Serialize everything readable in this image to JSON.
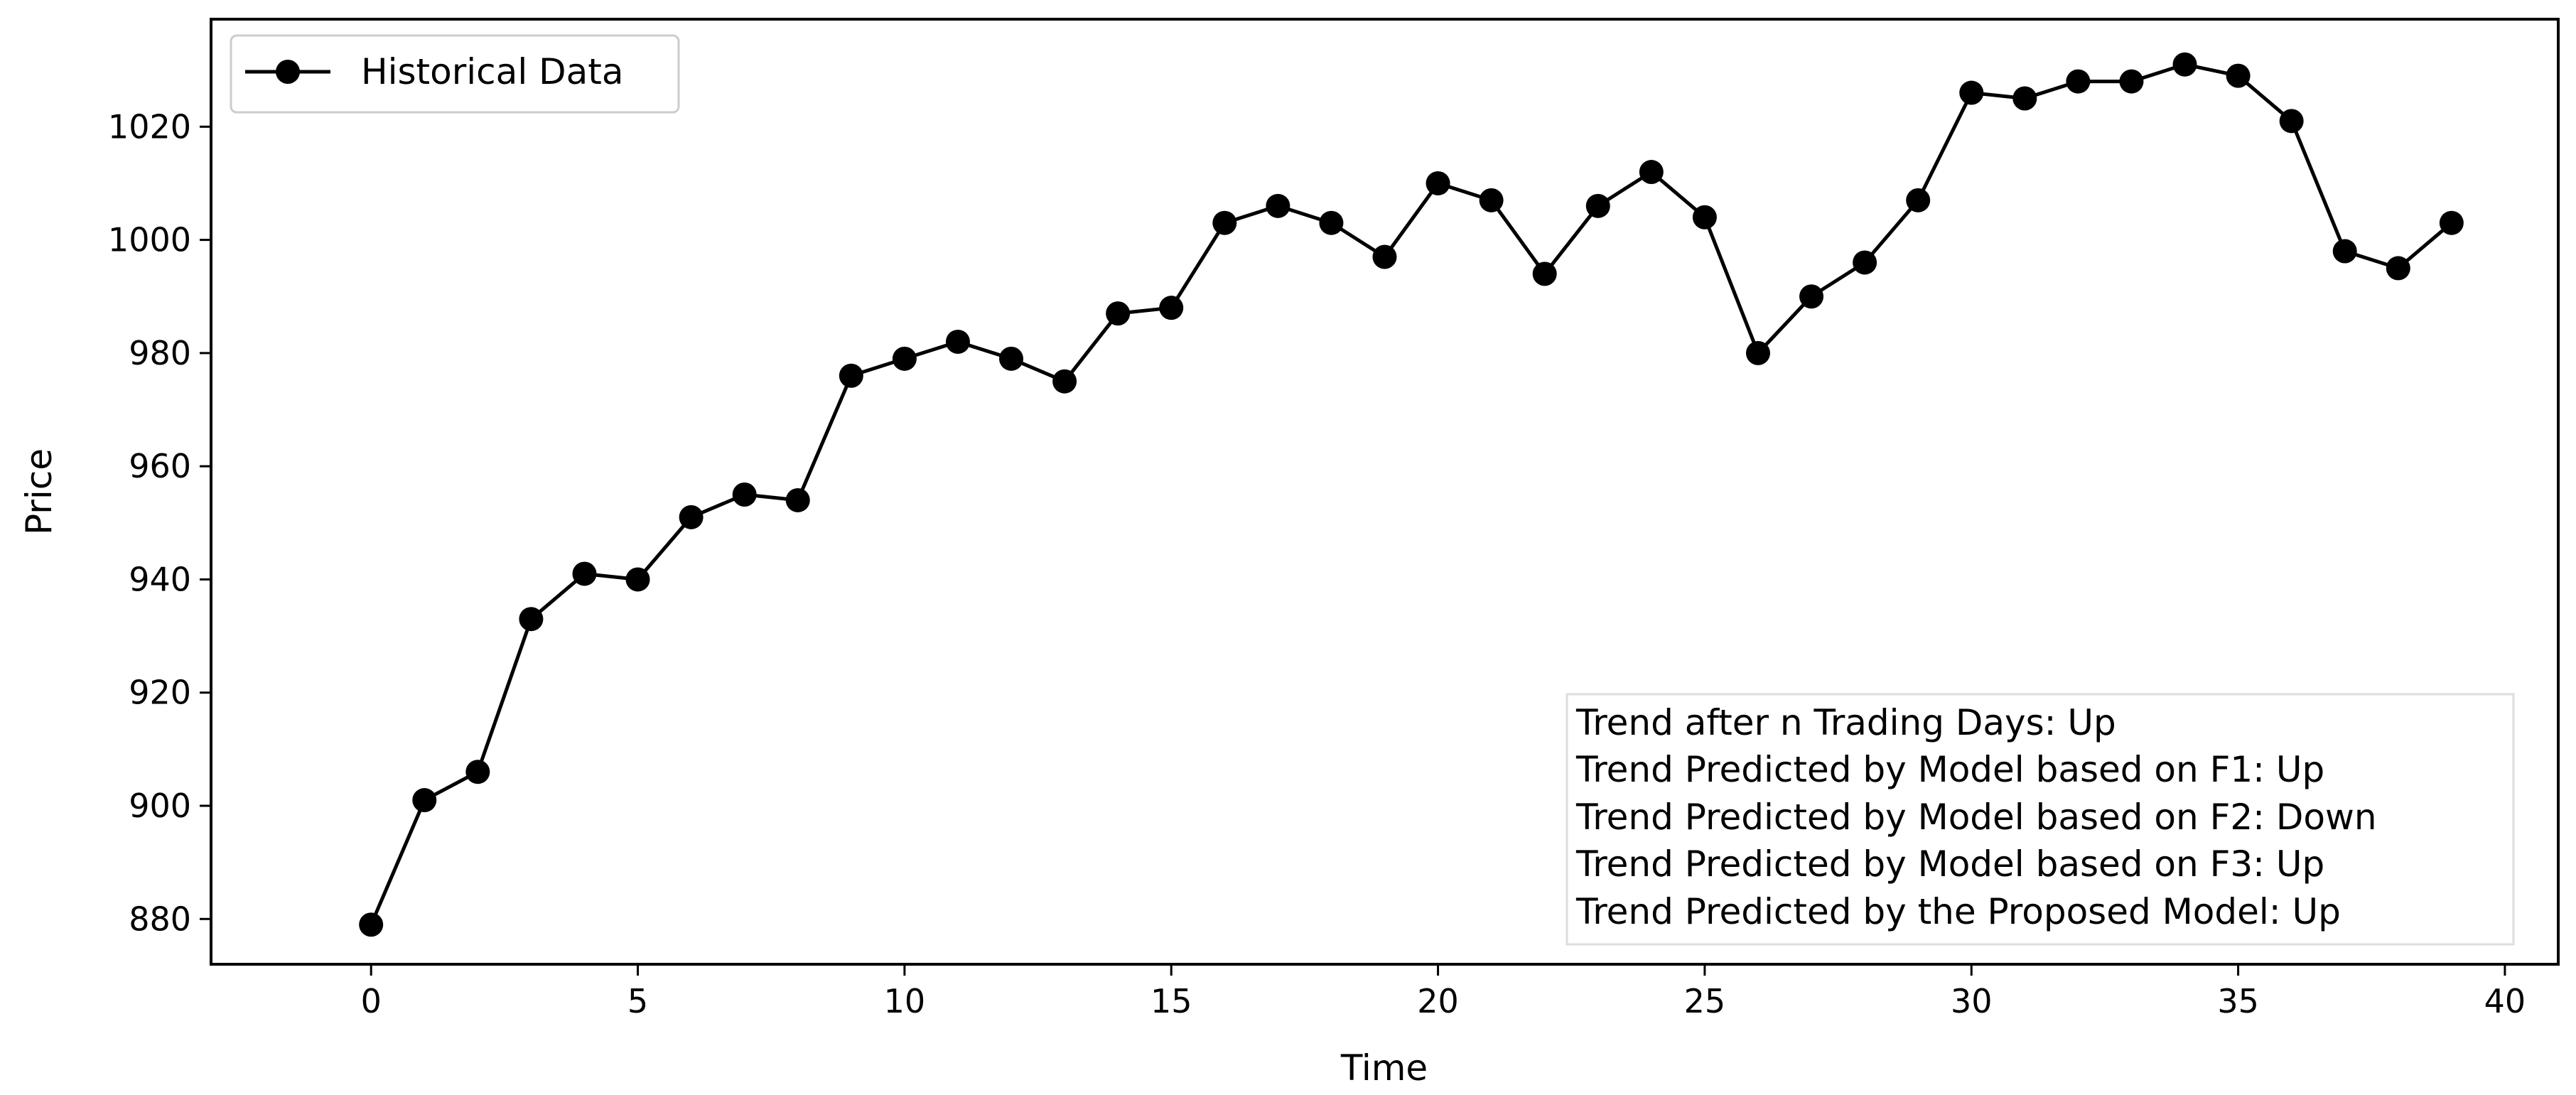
{
  "chart_data": {
    "type": "line",
    "xlabel": "Time",
    "ylabel": "Price",
    "xlim": [
      -3,
      41
    ],
    "ylim": [
      872,
      1039
    ],
    "xticks": [
      0,
      5,
      10,
      15,
      20,
      25,
      30,
      35,
      40
    ],
    "yticks": [
      880,
      900,
      920,
      940,
      960,
      980,
      1000,
      1020
    ],
    "grid": false,
    "legend": {
      "placement": "upper-left",
      "entries": [
        "Historical Data"
      ]
    },
    "series": [
      {
        "name": "Historical Data",
        "color": "#000000",
        "marker": "circle",
        "x": [
          0,
          1,
          2,
          3,
          4,
          5,
          6,
          7,
          8,
          9,
          10,
          11,
          12,
          13,
          14,
          15,
          16,
          17,
          18,
          19,
          20,
          21,
          22,
          23,
          24,
          25,
          26,
          27,
          28,
          29,
          30,
          31,
          32,
          33,
          34,
          35,
          36,
          37,
          38,
          39
        ],
        "values": [
          879,
          901,
          906,
          933,
          941,
          940,
          951,
          955,
          954,
          976,
          979,
          982,
          979,
          975,
          987,
          988,
          1003,
          1006,
          1003,
          997,
          1010,
          1007,
          994,
          1006,
          1012,
          1004,
          980,
          990,
          996,
          1007,
          1026,
          1025,
          1028,
          1028,
          1031,
          1029,
          1021,
          998,
          995,
          1003
        ]
      }
    ],
    "annotations": [
      "Trend after n Trading Days: Up",
      "Trend Predicted by Model based on F1: Up",
      "Trend Predicted by Model based on F2: Down",
      "Trend Predicted by Model based on F3: Up",
      "Trend Predicted by the Proposed Model: Up"
    ]
  }
}
